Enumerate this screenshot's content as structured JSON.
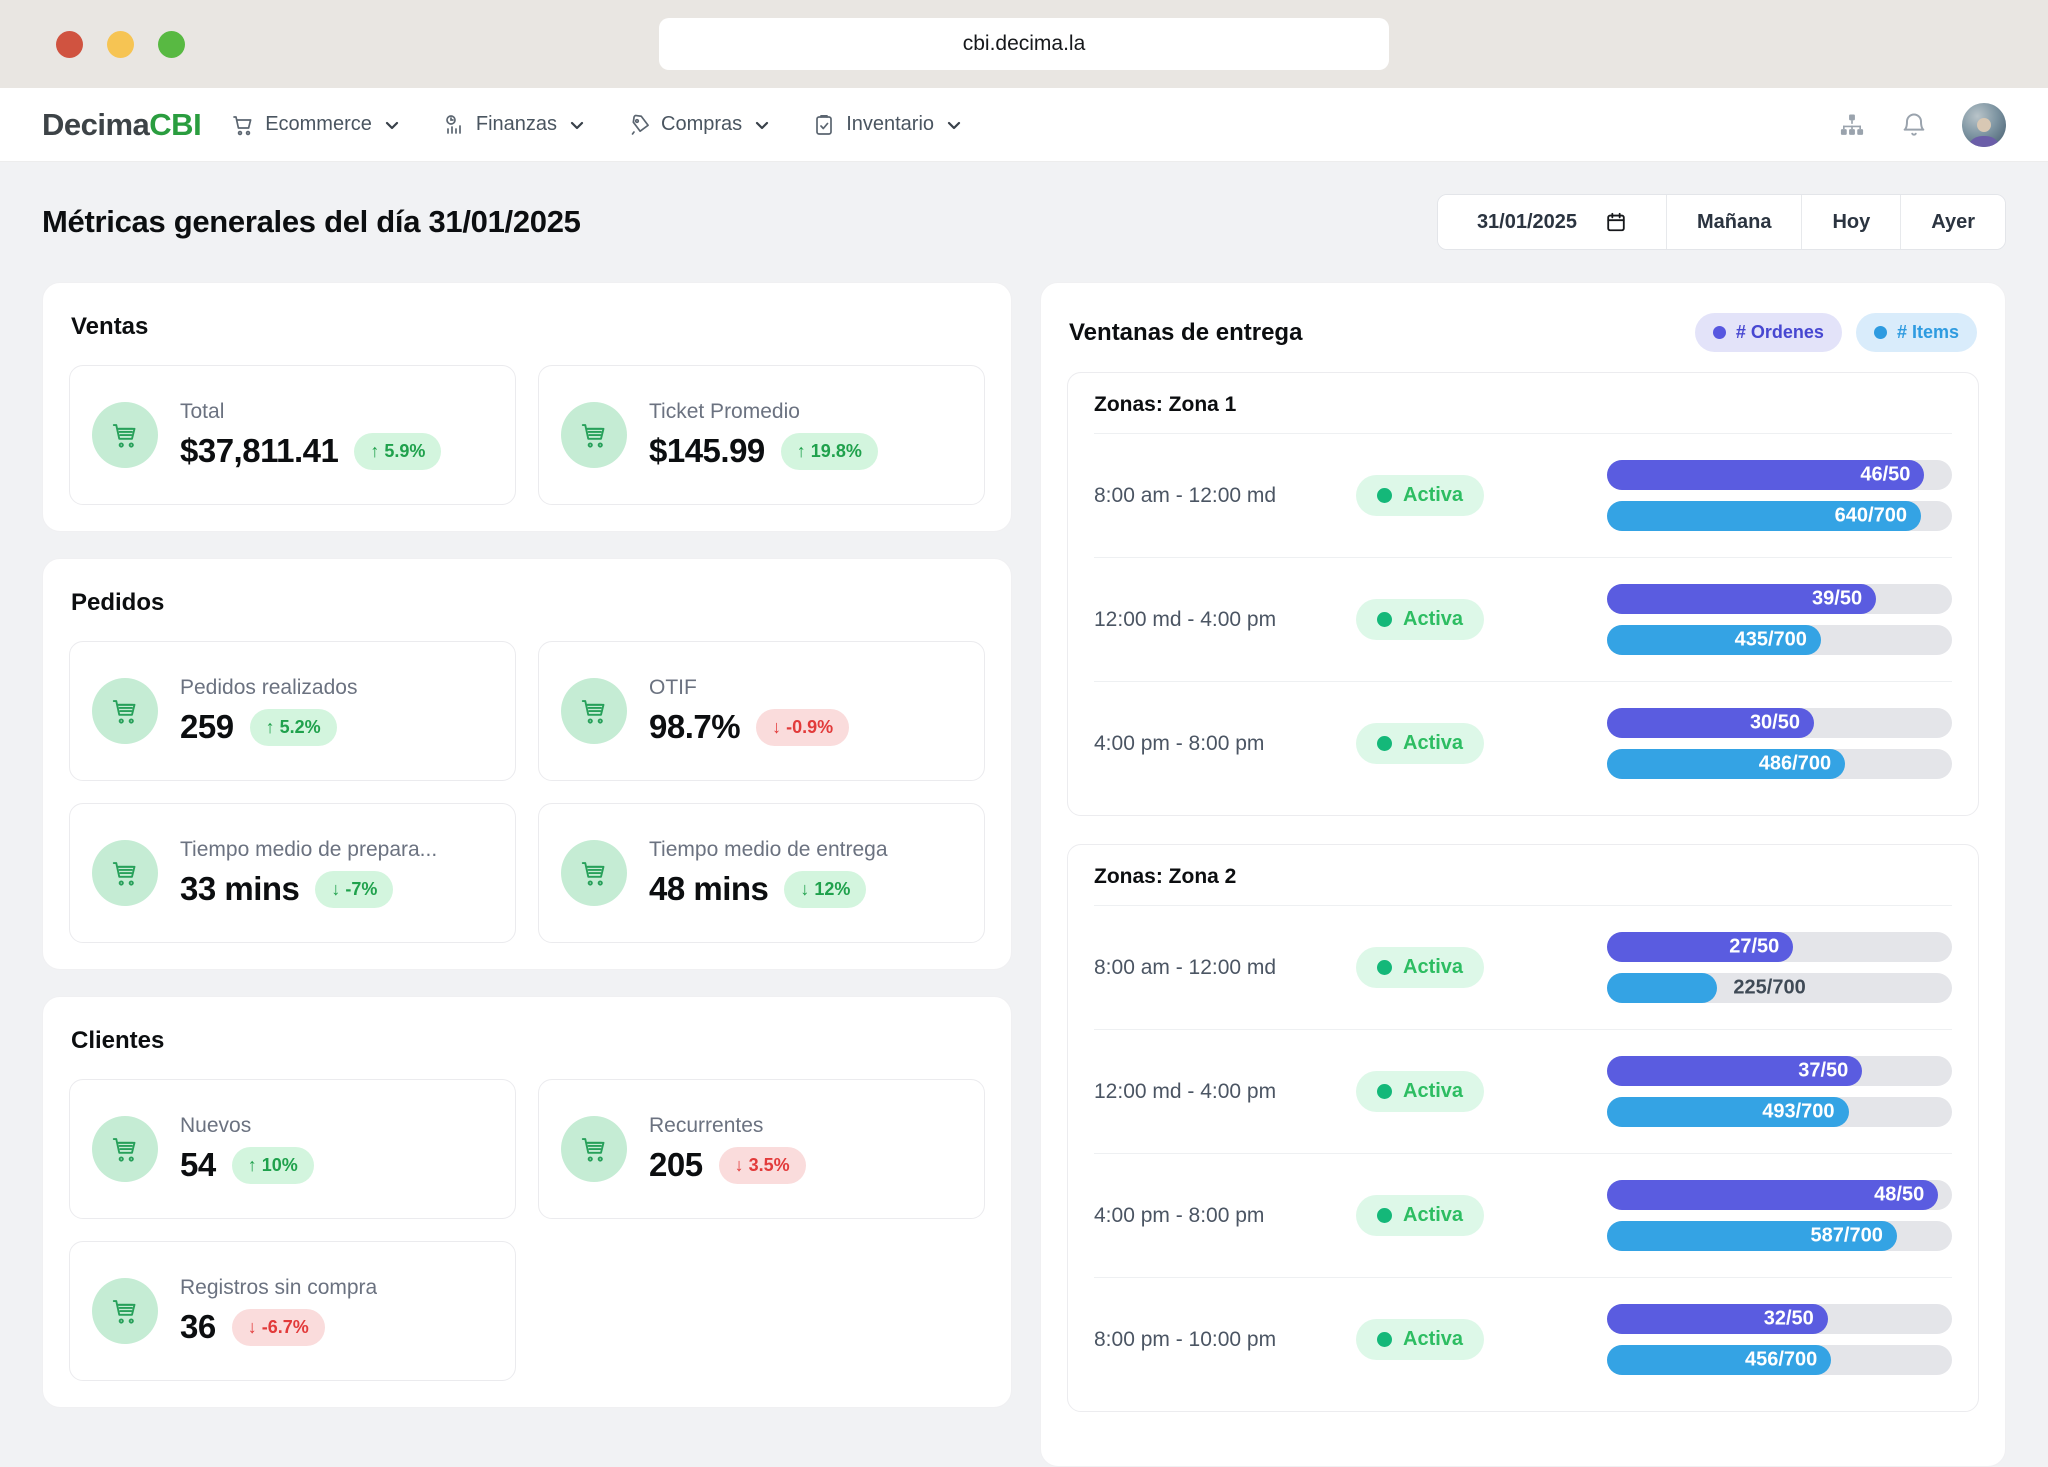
{
  "browser": {
    "url": "cbi.decima.la"
  },
  "navbar": {
    "logo": {
      "part1": "Decima",
      "part2": "CBI"
    },
    "menus": [
      {
        "label": "Ecommerce",
        "icon": "cart-icon"
      },
      {
        "label": "Finanzas",
        "icon": "finance-icon"
      },
      {
        "label": "Compras",
        "icon": "purchases-icon"
      },
      {
        "label": "Inventario",
        "icon": "inventory-icon"
      }
    ],
    "right_icons": [
      "sitemap-icon",
      "bell-icon",
      "avatar"
    ]
  },
  "header": {
    "title": "Métricas generales del día 31/01/2025",
    "date_value": "31/01/2025",
    "buttons": {
      "tomorrow": "Mañana",
      "today": "Hoy",
      "yesterday": "Ayer"
    }
  },
  "colors": {
    "accent_green": "#27a05a",
    "badge_positive_bg": "#d3f5de",
    "badge_positive_text": "#1fa14c",
    "badge_negative_bg": "#fadcdc",
    "badge_negative_text": "#e23a3a",
    "orders_bar": "#5a5ce0",
    "items_bar": "#34a3e4",
    "bar_track": "#e4e5e9",
    "status_green": "#2dbd62"
  },
  "sections": [
    {
      "title": "Ventas",
      "metrics": [
        {
          "label": "Total",
          "value": "$37,811.41",
          "delta": "↑ 5.9%",
          "tone": "positive"
        },
        {
          "label": "Ticket Promedio",
          "value": "$145.99",
          "delta": "↑ 19.8%",
          "tone": "positive"
        }
      ]
    },
    {
      "title": "Pedidos",
      "metrics": [
        {
          "label": "Pedidos realizados",
          "value": "259",
          "delta": "↑ 5.2%",
          "tone": "positive"
        },
        {
          "label": "OTIF",
          "value": "98.7%",
          "delta": "↓ -0.9%",
          "tone": "negative"
        },
        {
          "label": "Tiempo medio de prepara...",
          "value": "33 mins",
          "delta": "↓ -7%",
          "tone": "positive"
        },
        {
          "label": "Tiempo medio de entrega",
          "value": "48 mins",
          "delta": "↓ 12%",
          "tone": "positive"
        }
      ]
    },
    {
      "title": "Clientes",
      "metrics": [
        {
          "label": "Nuevos",
          "value": "54",
          "delta": "↑ 10%",
          "tone": "positive"
        },
        {
          "label": "Recurrentes",
          "value": "205",
          "delta": "↓ 3.5%",
          "tone": "negative"
        },
        {
          "label": "Registros sin compra",
          "value": "36",
          "delta": "↓ -6.7%",
          "tone": "negative"
        }
      ]
    }
  ],
  "delivery": {
    "title": "Ventanas de entrega",
    "legend": [
      {
        "label": "# Ordenes",
        "color": "#5a5ce0"
      },
      {
        "label": "# Items",
        "color": "#34a3e4"
      }
    ],
    "zones": [
      {
        "title": "Zonas: Zona 1",
        "windows": [
          {
            "time": "8:00 am - 12:00 md",
            "status": "Activa",
            "orders": {
              "value": 46,
              "max": 50,
              "label": "46/50"
            },
            "items": {
              "value": 640,
              "max": 700,
              "label": "640/700"
            }
          },
          {
            "time": "12:00 md - 4:00 pm",
            "status": "Activa",
            "orders": {
              "value": 39,
              "max": 50,
              "label": "39/50"
            },
            "items": {
              "value": 435,
              "max": 700,
              "label": "435/700"
            }
          },
          {
            "time": "4:00 pm - 8:00 pm",
            "status": "Activa",
            "orders": {
              "value": 30,
              "max": 50,
              "label": "30/50"
            },
            "items": {
              "value": 486,
              "max": 700,
              "label": "486/700"
            }
          }
        ]
      },
      {
        "title": "Zonas: Zona 2",
        "windows": [
          {
            "time": "8:00 am - 12:00 md",
            "status": "Activa",
            "orders": {
              "value": 27,
              "max": 50,
              "label": "27/50"
            },
            "items": {
              "value": 225,
              "max": 700,
              "label": "225/700"
            }
          },
          {
            "time": "12:00 md - 4:00 pm",
            "status": "Activa",
            "orders": {
              "value": 37,
              "max": 50,
              "label": "37/50"
            },
            "items": {
              "value": 493,
              "max": 700,
              "label": "493/700"
            }
          },
          {
            "time": "4:00 pm - 8:00 pm",
            "status": "Activa",
            "orders": {
              "value": 48,
              "max": 50,
              "label": "48/50"
            },
            "items": {
              "value": 587,
              "max": 700,
              "label": "587/700"
            }
          },
          {
            "time": "8:00 pm - 10:00 pm",
            "status": "Activa",
            "orders": {
              "value": 32,
              "max": 50,
              "label": "32/50"
            },
            "items": {
              "value": 456,
              "max": 700,
              "label": "456/700"
            }
          }
        ]
      }
    ]
  }
}
